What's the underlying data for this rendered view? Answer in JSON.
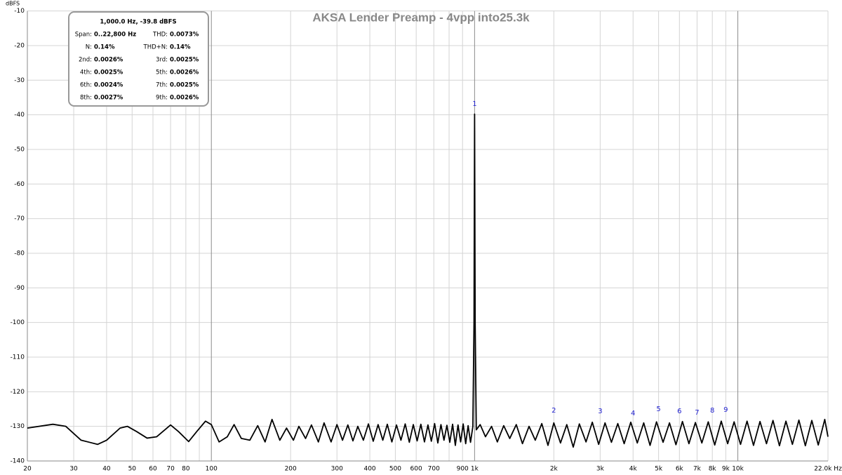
{
  "chart_data": {
    "type": "line",
    "title": "AKSA Lender Preamp - 4vpp into25.3k",
    "y_unit": "dBFS",
    "log_x": true,
    "grid": true,
    "xlim": [
      20,
      22000
    ],
    "ylim": [
      -140,
      -10
    ],
    "xticks": [
      20,
      30,
      40,
      50,
      60,
      70,
      80,
      100,
      200,
      300,
      400,
      500,
      600,
      700,
      900,
      {
        "value": 1000,
        "label": "1k"
      },
      {
        "value": 2000,
        "label": "2k"
      },
      {
        "value": 3000,
        "label": "3k"
      },
      {
        "value": 4000,
        "label": "4k"
      },
      {
        "value": 5000,
        "label": "5k"
      },
      {
        "value": 6000,
        "label": "6k"
      },
      {
        "value": 7000,
        "label": "7k"
      },
      {
        "value": 8000,
        "label": "8k"
      },
      {
        "value": 9000,
        "label": "9k"
      },
      {
        "value": 10000,
        "label": "10k"
      },
      {
        "value": 22000,
        "label": "22.0k Hz"
      }
    ],
    "x_minor_ticks": [
      90,
      800
    ],
    "yticks": [
      -10,
      -20,
      -30,
      -40,
      -50,
      -60,
      -70,
      -80,
      -90,
      -100,
      -110,
      -120,
      -130,
      -140
    ],
    "x": [
      20,
      25,
      28,
      32,
      37,
      40,
      45,
      48,
      52,
      57,
      62,
      70,
      75,
      82,
      88,
      95,
      100,
      107,
      115,
      122,
      130,
      140,
      150,
      160,
      170,
      182,
      193,
      205,
      215,
      228,
      240,
      255,
      268,
      285,
      300,
      315,
      330,
      345,
      360,
      378,
      395,
      412,
      430,
      448,
      466,
      485,
      505,
      525,
      545,
      565,
      585,
      605,
      625,
      645,
      665,
      685,
      705,
      725,
      745,
      765,
      785,
      805,
      825,
      845,
      865,
      885,
      905,
      925,
      945,
      965,
      985,
      995,
      1000,
      1005,
      1015,
      1050,
      1100,
      1160,
      1220,
      1290,
      1360,
      1440,
      1520,
      1610,
      1700,
      1800,
      1900,
      2000,
      2120,
      2240,
      2370,
      2500,
      2650,
      2800,
      2960,
      3130,
      3310,
      3500,
      3700,
      3920,
      4150,
      4390,
      4640,
      4910,
      5200,
      5500,
      5820,
      6160,
      6520,
      6900,
      7300,
      7720,
      8170,
      8650,
      9150,
      9680,
      10240,
      10840,
      11470,
      12140,
      12850,
      13600,
      14390,
      15230,
      16120,
      17060,
      18050,
      19100,
      20210,
      21390,
      22000
    ],
    "series": [
      {
        "color": "#000000",
        "values": [
          -130.5,
          -129.4,
          -130,
          -134,
          -135.2,
          -134,
          -130.5,
          -130,
          -131.5,
          -133.4,
          -133,
          -129.6,
          -131.5,
          -134.4,
          -131.5,
          -128.5,
          -129.5,
          -134.5,
          -133,
          -129.5,
          -133.5,
          -134,
          -129.8,
          -134.5,
          -128,
          -134,
          -130.5,
          -134,
          -130,
          -133.5,
          -129.6,
          -134.5,
          -129,
          -134.5,
          -129.5,
          -134,
          -129.6,
          -134.2,
          -130,
          -134,
          -129.3,
          -134.3,
          -129.5,
          -134,
          -129.4,
          -134.5,
          -129.6,
          -134,
          -129.3,
          -134.6,
          -129.5,
          -134.2,
          -129.4,
          -134.5,
          -129.6,
          -134.3,
          -129.2,
          -134.8,
          -129.5,
          -134,
          -129.7,
          -134.6,
          -129.4,
          -135.5,
          -129.6,
          -134.5,
          -129.3,
          -135,
          -129.8,
          -134.6,
          -130,
          -100,
          -39.8,
          -100,
          -131,
          -129.5,
          -133,
          -130,
          -134.5,
          -129.8,
          -133.5,
          -129.5,
          -135,
          -130,
          -134,
          -129.2,
          -135.5,
          -129,
          -134.8,
          -129.5,
          -136,
          -129.3,
          -134.5,
          -128.8,
          -135.2,
          -129,
          -134.6,
          -129.2,
          -135,
          -128.8,
          -134.8,
          -129,
          -135.5,
          -128.7,
          -134.6,
          -129,
          -135.3,
          -128.6,
          -135,
          -128.9,
          -134.8,
          -128.7,
          -135.4,
          -128.5,
          -135,
          -128.7,
          -135.2,
          -128.5,
          -135.5,
          -128.6,
          -135,
          -128.3,
          -135.6,
          -128.5,
          -135.2,
          -128.2,
          -135.6,
          -128.3,
          -135.4,
          -128,
          -133
        ]
      }
    ],
    "harmonic_markers": [
      {
        "label": "1",
        "x": 1000,
        "y": -36.8
      },
      {
        "label": "2",
        "x": 2000,
        "y": -125.4
      },
      {
        "label": "3",
        "x": 3000,
        "y": -125.6
      },
      {
        "label": "4",
        "x": 4000,
        "y": -126.2
      },
      {
        "label": "5",
        "x": 5000,
        "y": -125
      },
      {
        "label": "6",
        "x": 6000,
        "y": -125.6
      },
      {
        "label": "7",
        "x": 7000,
        "y": -126
      },
      {
        "label": "8",
        "x": 8000,
        "y": -125.4
      },
      {
        "label": "9",
        "x": 9000,
        "y": -125.2
      }
    ],
    "harmonic_color": "#1f1fd0",
    "info_box": {
      "title": "1,000.0 Hz, -39.8 dBFS",
      "rows": [
        [
          "Span:",
          "0..22,800 Hz",
          "THD:",
          "0.0073%"
        ],
        [
          "N:",
          "0.14%",
          "THD+N:",
          "0.14%"
        ],
        [
          "2nd:",
          "0.0026%",
          "3rd:",
          "0.0025%"
        ],
        [
          "4th:",
          "0.0025%",
          "5th:",
          "0.0026%"
        ],
        [
          "6th:",
          "0.0024%",
          "7th:",
          "0.0025%"
        ],
        [
          "8th:",
          "0.0027%",
          "9th:",
          "0.0026%"
        ]
      ]
    }
  }
}
